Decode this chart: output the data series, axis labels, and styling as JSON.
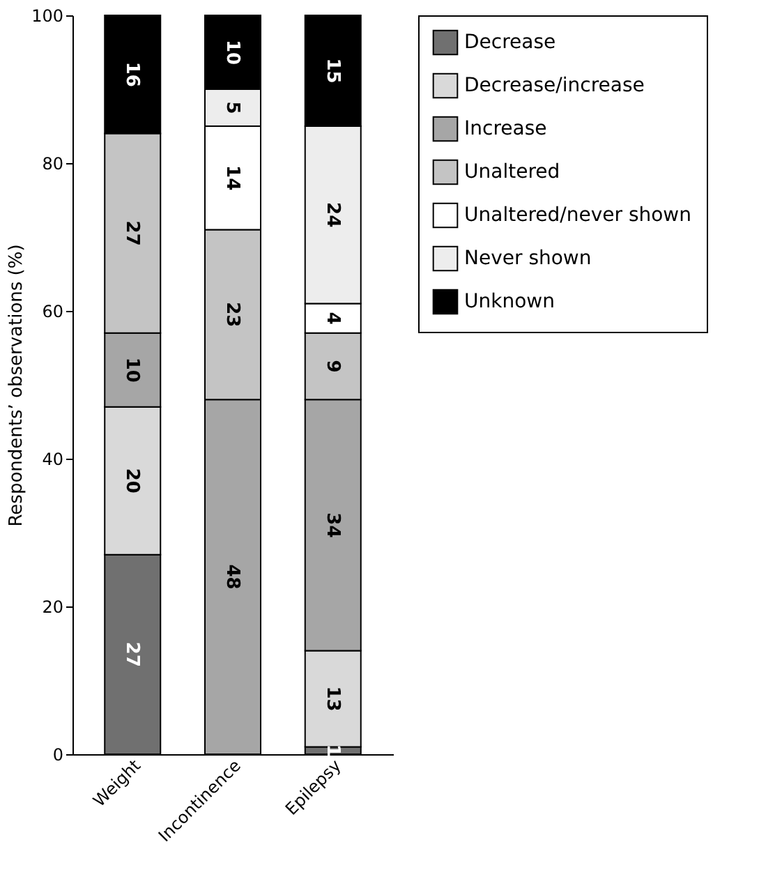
{
  "chart_data": {
    "type": "bar",
    "stacked": true,
    "ylabel": "Respondents’ observations (%)",
    "categories": [
      "Weight",
      "Incontinence",
      "Epilepsy"
    ],
    "series": [
      {
        "name": "Decrease",
        "color": "#707070",
        "values": [
          27,
          null,
          1
        ]
      },
      {
        "name": "Decrease/increase",
        "color": "#d9d9d9",
        "values": [
          20,
          null,
          13
        ]
      },
      {
        "name": "Increase",
        "color": "#a6a6a6",
        "values": [
          10,
          48,
          34
        ]
      },
      {
        "name": "Unaltered",
        "color": "#c4c4c4",
        "values": [
          27,
          23,
          9
        ]
      },
      {
        "name": "Unaltered/never shown",
        "color": "#ffffff",
        "values": [
          null,
          14,
          4
        ]
      },
      {
        "name": "Never shown",
        "color": "#ededed",
        "values": [
          null,
          5,
          24
        ]
      },
      {
        "name": "Unknown",
        "color": "#000000",
        "values": [
          16,
          10,
          15
        ]
      }
    ],
    "ylim": [
      0,
      100
    ],
    "yticks": [
      0,
      20,
      40,
      60,
      80,
      100
    ],
    "grid": false,
    "legend": "right",
    "data_labels": true
  }
}
